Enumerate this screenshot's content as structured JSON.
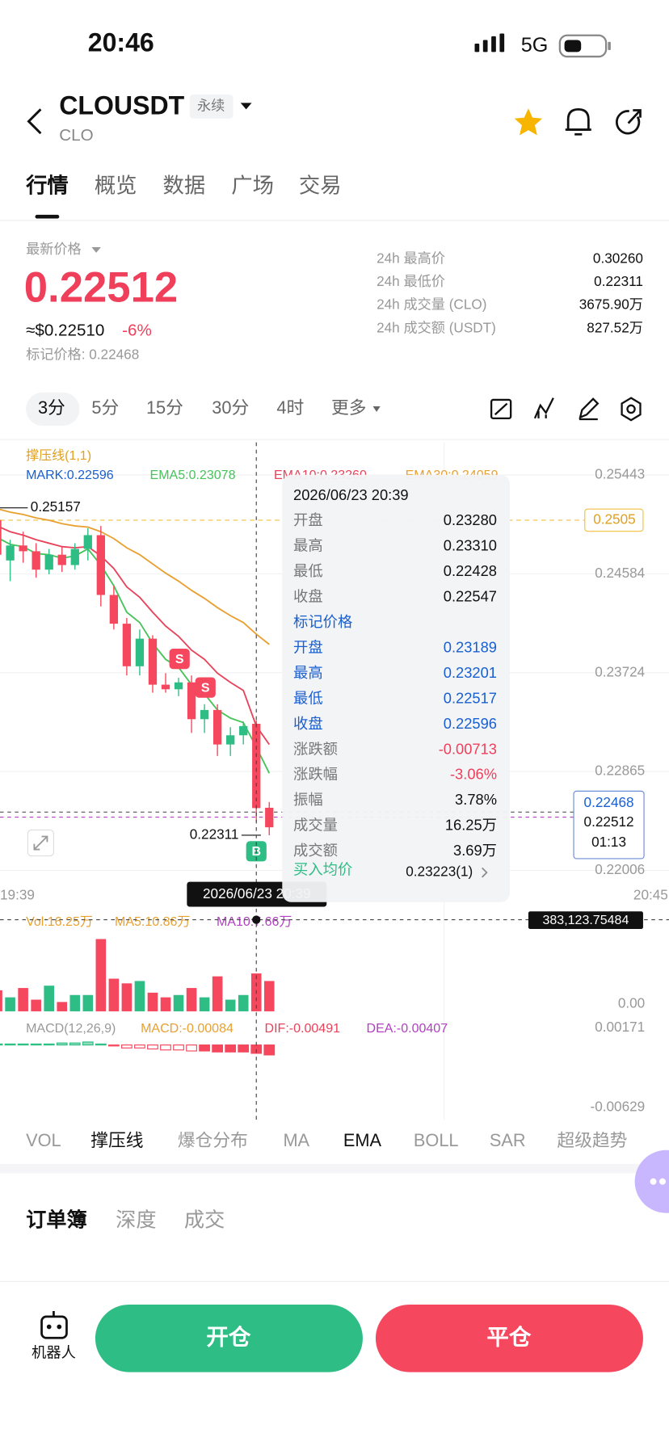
{
  "status": {
    "time": "20:46",
    "network": "5G"
  },
  "header": {
    "symbol": "CLOUSDT",
    "tag": "永续",
    "base": "CLO"
  },
  "tabs": [
    "行情",
    "概览",
    "数据",
    "广场",
    "交易"
  ],
  "price": {
    "label": "最新价格",
    "last": "0.22512",
    "usd": "≈$0.22510",
    "change": "-6%",
    "mark": "标记价格: 0.22468"
  },
  "stats": [
    {
      "label": "24h 最高价",
      "value": "0.30260"
    },
    {
      "label": "24h 最低价",
      "value": "0.22311"
    },
    {
      "label": "24h 成交量 (CLO)",
      "value": "3675.90万"
    },
    {
      "label": "24h 成交额 (USDT)",
      "value": "827.52万"
    }
  ],
  "intervals": [
    "3分",
    "5分",
    "15分",
    "30分",
    "4时",
    "更多"
  ],
  "kline": {
    "legend": {
      "title": "撑压线(1,1)",
      "mark": "MARK:0.22596",
      "ema5": "EMA5:0.23078",
      "ema10": "EMA10:0.23260",
      "ema30": "EMA30:0.24059"
    },
    "ylim": [
      0.2189,
      0.2563
    ],
    "yticks": [
      0.25443,
      0.24584,
      0.23724,
      0.22865,
      0.22006
    ],
    "candles": [
      {
        "open": 0.2505,
        "high": 0.2516,
        "low": 0.2468,
        "close": 0.2475
      },
      {
        "open": 0.247,
        "high": 0.2488,
        "low": 0.2452,
        "close": 0.2483
      },
      {
        "open": 0.2483,
        "high": 0.2495,
        "low": 0.2468,
        "close": 0.2478
      },
      {
        "open": 0.2478,
        "high": 0.2485,
        "low": 0.2455,
        "close": 0.2462
      },
      {
        "open": 0.2462,
        "high": 0.248,
        "low": 0.2458,
        "close": 0.2475
      },
      {
        "open": 0.2475,
        "high": 0.2482,
        "low": 0.246,
        "close": 0.2466
      },
      {
        "open": 0.2466,
        "high": 0.2485,
        "low": 0.2462,
        "close": 0.248
      },
      {
        "open": 0.248,
        "high": 0.2498,
        "low": 0.247,
        "close": 0.2492
      },
      {
        "open": 0.2492,
        "high": 0.25,
        "low": 0.243,
        "close": 0.244
      },
      {
        "open": 0.244,
        "high": 0.2448,
        "low": 0.241,
        "close": 0.2415
      },
      {
        "open": 0.2415,
        "high": 0.242,
        "low": 0.237,
        "close": 0.2378
      },
      {
        "open": 0.2378,
        "high": 0.241,
        "low": 0.237,
        "close": 0.2402
      },
      {
        "open": 0.2402,
        "high": 0.2405,
        "low": 0.2355,
        "close": 0.2362
      },
      {
        "open": 0.2362,
        "high": 0.2372,
        "low": 0.2355,
        "close": 0.2358
      },
      {
        "open": 0.2358,
        "high": 0.2368,
        "low": 0.2352,
        "close": 0.2364
      },
      {
        "open": 0.2364,
        "high": 0.237,
        "low": 0.232,
        "close": 0.2332
      },
      {
        "open": 0.2332,
        "high": 0.2345,
        "low": 0.232,
        "close": 0.234
      },
      {
        "open": 0.234,
        "high": 0.2345,
        "low": 0.23,
        "close": 0.231
      },
      {
        "open": 0.231,
        "high": 0.2325,
        "low": 0.23,
        "close": 0.2318
      },
      {
        "open": 0.2318,
        "high": 0.233,
        "low": 0.231,
        "close": 0.2326
      },
      {
        "open": 0.2328,
        "high": 0.2331,
        "low": 0.22428,
        "close": 0.22547
      },
      {
        "open": 0.2255,
        "high": 0.226,
        "low": 0.22311,
        "close": 0.2238
      }
    ],
    "ema5": [
      0.249,
      0.2484,
      0.2482,
      0.2476,
      0.2475,
      0.2472,
      0.2474,
      0.248,
      0.2466,
      0.2448,
      0.2425,
      0.2416,
      0.2398,
      0.2384,
      0.2377,
      0.2362,
      0.2354,
      0.234,
      0.2333,
      0.2329,
      0.23078,
      0.2285
    ],
    "ema10": [
      0.25,
      0.2495,
      0.2492,
      0.2488,
      0.2485,
      0.2482,
      0.2481,
      0.2482,
      0.2474,
      0.2463,
      0.2447,
      0.2438,
      0.2425,
      0.2413,
      0.2404,
      0.2392,
      0.2384,
      0.2372,
      0.2364,
      0.2357,
      0.2326,
      0.231
    ],
    "ema30": [
      0.2515,
      0.2512,
      0.251,
      0.2507,
      0.2505,
      0.2502,
      0.25,
      0.2499,
      0.2495,
      0.2489,
      0.2481,
      0.2475,
      0.2467,
      0.2459,
      0.2452,
      0.2444,
      0.2437,
      0.2429,
      0.2422,
      0.2416,
      0.24059,
      0.2397
    ],
    "high_label": 0.25157,
    "low_label": 0.22311,
    "alert_line": 0.2505,
    "mark_price": 0.22468,
    "last_price": 0.22512,
    "countdown": "01:13",
    "x_labels": [
      "19:39",
      "20:45"
    ],
    "signals": [
      "S",
      "S",
      "B"
    ],
    "crosshair": {
      "time": "2026/06/23 20:39",
      "value": "383,123.75484"
    }
  },
  "volume": {
    "legend": [
      "Vol:16.25万",
      "MA5:10.86万",
      "MA10:7.66万"
    ],
    "axis_label": "0.00",
    "values": [
      9,
      6,
      10,
      5,
      11,
      4,
      7,
      7,
      31,
      14,
      12,
      13,
      8,
      6,
      7,
      10,
      6,
      15,
      5,
      7,
      16.25,
      13
    ]
  },
  "macd": {
    "legend": [
      "MACD(12,26,9)",
      "MACD:-0.00084",
      "DIF:-0.00491",
      "DEA:-0.00407"
    ],
    "yticks": [
      0.00171,
      -0.00629
    ],
    "hist": [
      0.0001,
      0.0001,
      0.0001,
      0.0001,
      0.0001,
      0.0002,
      0.0002,
      0.0003,
      0.0001,
      -0.0001,
      -0.0003,
      -0.0003,
      -0.0004,
      -0.0005,
      -0.0005,
      -0.0006,
      -0.0006,
      -0.0007,
      -0.0007,
      -0.0007,
      -0.00084,
      -0.001
    ]
  },
  "tooltip": {
    "time": "2026/06/23 20:39",
    "candle": [
      {
        "label": "开盘",
        "value": "0.23280"
      },
      {
        "label": "最高",
        "value": "0.23310"
      },
      {
        "label": "最低",
        "value": "0.22428"
      },
      {
        "label": "收盘",
        "value": "0.22547"
      }
    ],
    "mark_title": "标记价格",
    "mark": [
      {
        "label": "开盘",
        "value": "0.23189"
      },
      {
        "label": "最高",
        "value": "0.23201"
      },
      {
        "label": "最低",
        "value": "0.22517"
      },
      {
        "label": "收盘",
        "value": "0.22596"
      }
    ],
    "stats": [
      {
        "label": "涨跌额",
        "value": "-0.00713"
      },
      {
        "label": "涨跌幅",
        "value": "-3.06%"
      },
      {
        "label": "振幅",
        "value": "3.78%"
      },
      {
        "label": "成交量",
        "value": "16.25万"
      },
      {
        "label": "成交额",
        "value": "3.69万"
      }
    ],
    "avg": {
      "label": "买入均价",
      "value": "0.23223(1)"
    }
  },
  "indicators": [
    "VOL",
    "撑压线",
    "爆仓分布",
    "MA",
    "EMA",
    "BOLL",
    "SAR",
    "超级趋势"
  ],
  "book_tabs": [
    "订单簿",
    "深度",
    "成交"
  ],
  "footer": {
    "robot": "机器人",
    "open": "开仓",
    "close": "平仓"
  }
}
